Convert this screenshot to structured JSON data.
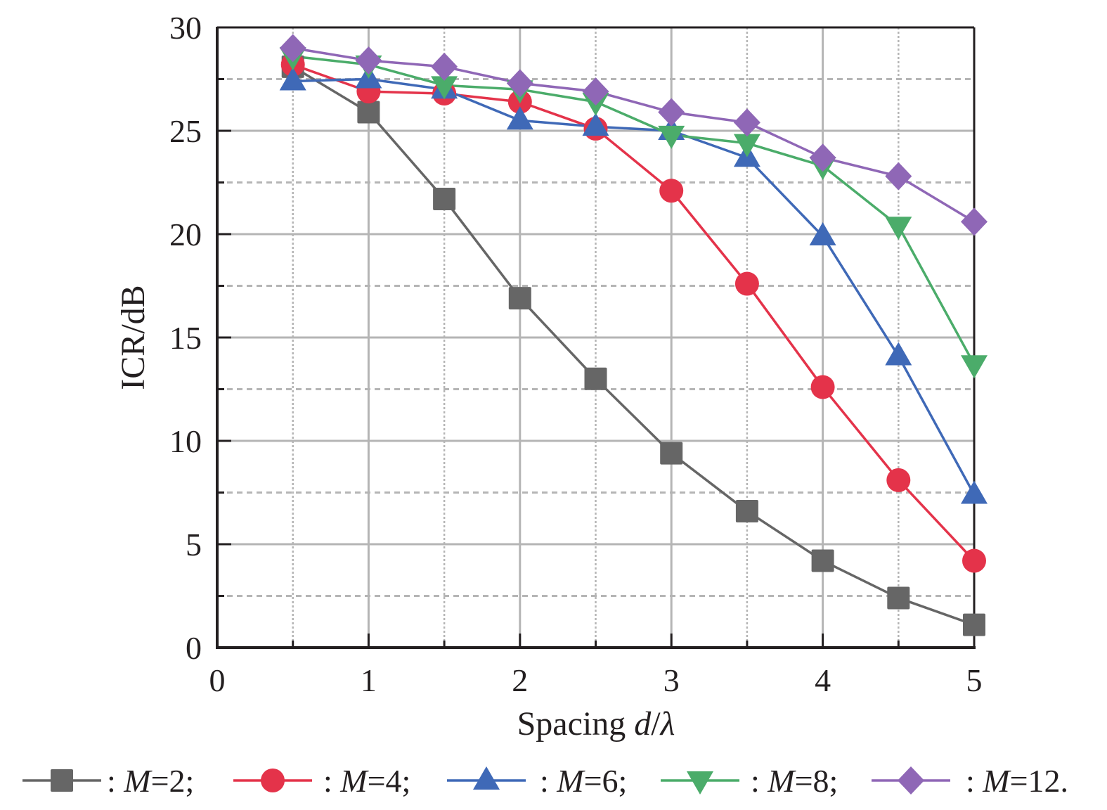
{
  "chart_data": {
    "type": "line",
    "title": "",
    "xlabel": "Spacing d/λ",
    "xlabel_parts": {
      "prefix": "Spacing ",
      "var1": "d",
      "sep": "/",
      "var2": "λ"
    },
    "ylabel": "ICR/dB",
    "xlim": [
      0,
      5
    ],
    "ylim": [
      0,
      30
    ],
    "x_ticks": [
      0,
      1,
      2,
      3,
      4,
      5
    ],
    "x_tick_labels": [
      "0",
      "1",
      "2",
      "3",
      "4",
      "5"
    ],
    "y_ticks": [
      0,
      5,
      10,
      15,
      20,
      25,
      30
    ],
    "y_tick_labels": [
      "0",
      "5",
      "10",
      "15",
      "20",
      "25",
      "30"
    ],
    "x_minor_ticks": [
      0.5,
      1.5,
      2.5,
      3.5,
      4.5
    ],
    "y_minor_ticks": [
      2.5,
      7.5,
      12.5,
      17.5,
      22.5,
      27.5
    ],
    "grid": true,
    "legend_position": "bottom",
    "x": [
      0.5,
      1.0,
      1.5,
      2.0,
      2.5,
      3.0,
      3.5,
      4.0,
      4.5,
      5.0
    ],
    "series": [
      {
        "name": "M=2",
        "legend": {
          "sep": " : ",
          "var": "M",
          "eq": "=2;"
        },
        "marker": "square",
        "color": "#666666",
        "values": [
          28.1,
          25.9,
          21.7,
          16.9,
          13.0,
          9.4,
          6.6,
          4.2,
          2.4,
          1.1
        ]
      },
      {
        "name": "M=4",
        "legend": {
          "sep": " : ",
          "var": "M",
          "eq": "=4;"
        },
        "marker": "circle",
        "color": "#e4334a",
        "values": [
          28.2,
          26.9,
          26.8,
          26.4,
          25.1,
          22.1,
          17.6,
          12.6,
          8.1,
          4.2
        ]
      },
      {
        "name": "M=6",
        "legend": {
          "sep": " : ",
          "var": "M",
          "eq": "=6;"
        },
        "marker": "triangle-up",
        "color": "#3f69b7",
        "values": [
          27.4,
          27.5,
          27.0,
          25.5,
          25.2,
          25.0,
          23.7,
          19.9,
          14.1,
          7.4
        ]
      },
      {
        "name": "M=8",
        "legend": {
          "sep": " : ",
          "var": "M",
          "eq": "=8;"
        },
        "marker": "triangle-down",
        "color": "#4bac6a",
        "values": [
          28.6,
          28.2,
          27.2,
          27.0,
          26.4,
          24.8,
          24.4,
          23.3,
          20.4,
          13.7
        ]
      },
      {
        "name": "M=12",
        "legend": {
          "sep": " : ",
          "var": "M",
          "eq": "=12."
        },
        "marker": "diamond",
        "color": "#8f67b6",
        "values": [
          29.0,
          28.4,
          28.1,
          27.3,
          26.9,
          25.9,
          25.4,
          23.7,
          22.8,
          20.6
        ]
      }
    ]
  }
}
